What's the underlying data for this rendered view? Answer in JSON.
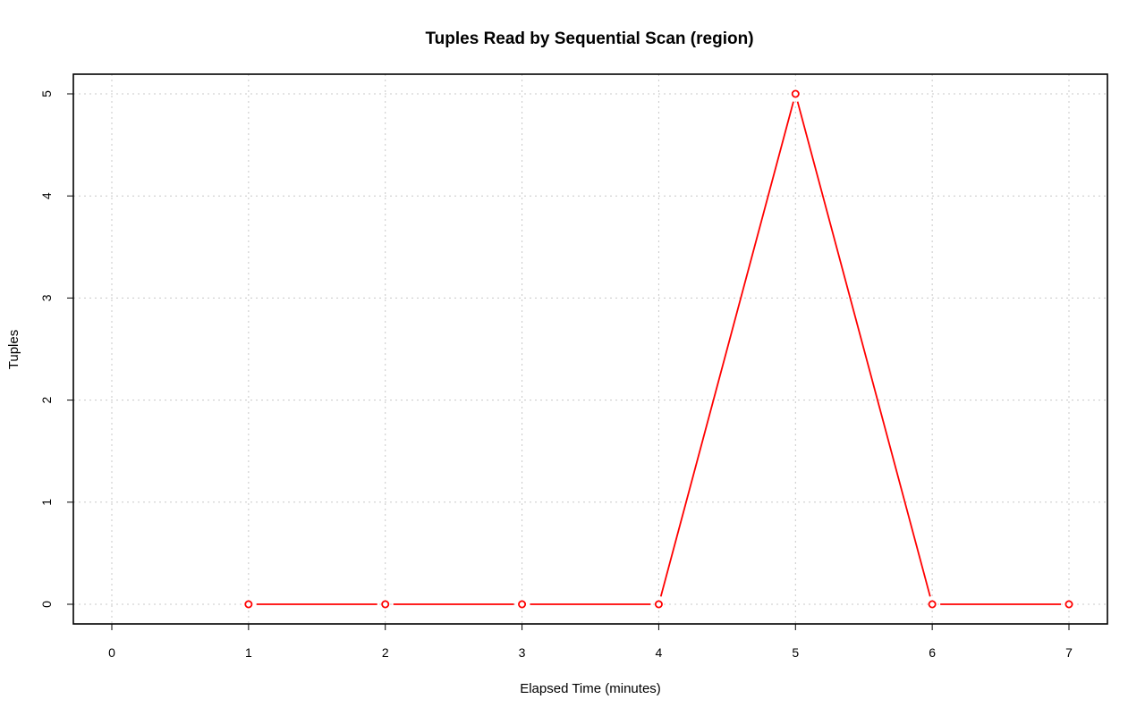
{
  "chart_data": {
    "type": "line",
    "title": "Tuples Read by Sequential Scan (region)",
    "xlabel": "Elapsed Time (minutes)",
    "ylabel": "Tuples",
    "xlim": [
      0,
      7
    ],
    "ylim": [
      0,
      5
    ],
    "x_ticks": [
      "0",
      "1",
      "2",
      "3",
      "4",
      "5",
      "6",
      "7"
    ],
    "y_ticks": [
      "0",
      "1",
      "2",
      "3",
      "4",
      "5"
    ],
    "grid": true,
    "series": [
      {
        "x": [
          1,
          2,
          3,
          4,
          5,
          6,
          7
        ],
        "y": [
          0,
          0,
          0,
          0,
          5,
          0,
          0
        ],
        "color": "#ff0000",
        "marker": "open-circle"
      }
    ]
  }
}
